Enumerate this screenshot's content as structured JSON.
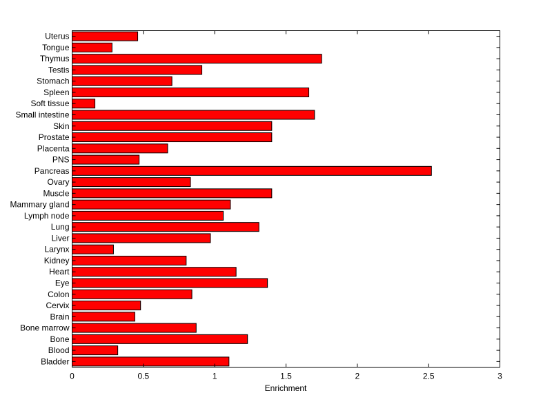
{
  "chart_data": {
    "type": "bar",
    "orientation": "horizontal",
    "title": "",
    "xlabel": "Enrichment",
    "ylabel": "",
    "xlim": [
      0,
      3
    ],
    "xticks": [
      0,
      0.5,
      1,
      1.5,
      2,
      2.5,
      3
    ],
    "xtick_labels": [
      "0",
      "0.5",
      "1",
      "1.5",
      "2",
      "2.5",
      "3"
    ],
    "bar_color": "#ff0000",
    "categories": [
      "Bladder",
      "Blood",
      "Bone",
      "Bone marrow",
      "Brain",
      "Cervix",
      "Colon",
      "Eye",
      "Heart",
      "Kidney",
      "Larynx",
      "Liver",
      "Lung",
      "Lymph node",
      "Mammary gland",
      "Muscle",
      "Ovary",
      "Pancreas",
      "PNS",
      "Placenta",
      "Prostate",
      "Skin",
      "Small intestine",
      "Soft tissue",
      "Spleen",
      "Stomach",
      "Testis",
      "Thymus",
      "Tongue",
      "Uterus"
    ],
    "values": [
      1.1,
      0.32,
      1.23,
      0.87,
      0.44,
      0.48,
      0.84,
      1.37,
      1.15,
      0.8,
      0.29,
      0.97,
      1.31,
      1.06,
      1.11,
      1.4,
      0.83,
      2.52,
      0.47,
      0.67,
      1.4,
      1.4,
      1.7,
      0.16,
      1.66,
      0.7,
      0.91,
      1.75,
      0.28,
      0.46
    ]
  }
}
